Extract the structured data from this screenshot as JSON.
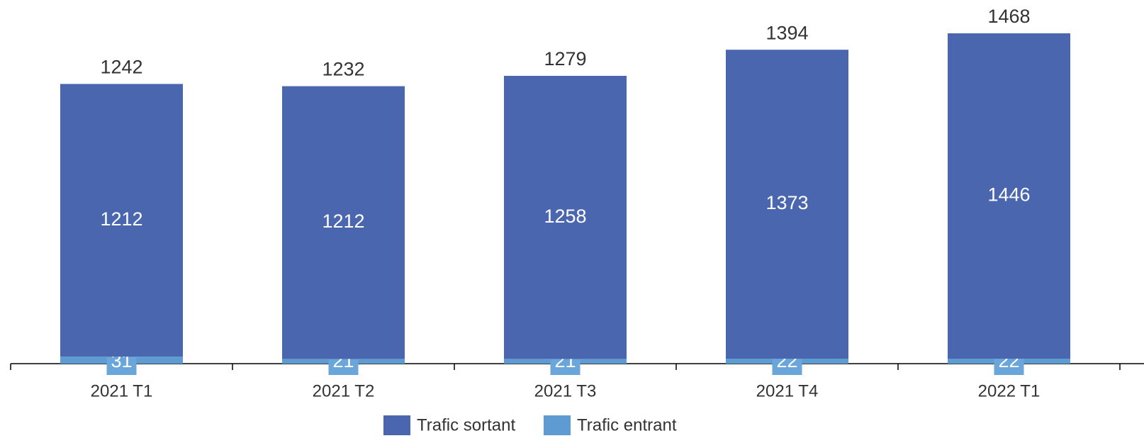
{
  "chart_data": {
    "type": "stacked_bar",
    "categories": [
      "2021 T1",
      "2021 T2",
      "2021 T3",
      "2021 T4",
      "2022 T1"
    ],
    "series": [
      {
        "name": "Trafic entrant",
        "color": "#5f9bd3",
        "values": [
          31,
          21,
          21,
          22,
          22
        ]
      },
      {
        "name": "Trafic sortant",
        "color": "#4a66ae",
        "values": [
          1212,
          1212,
          1258,
          1373,
          1446
        ]
      }
    ],
    "totals": [
      1242,
      1232,
      1279,
      1394,
      1468
    ],
    "legend": "bottom"
  }
}
